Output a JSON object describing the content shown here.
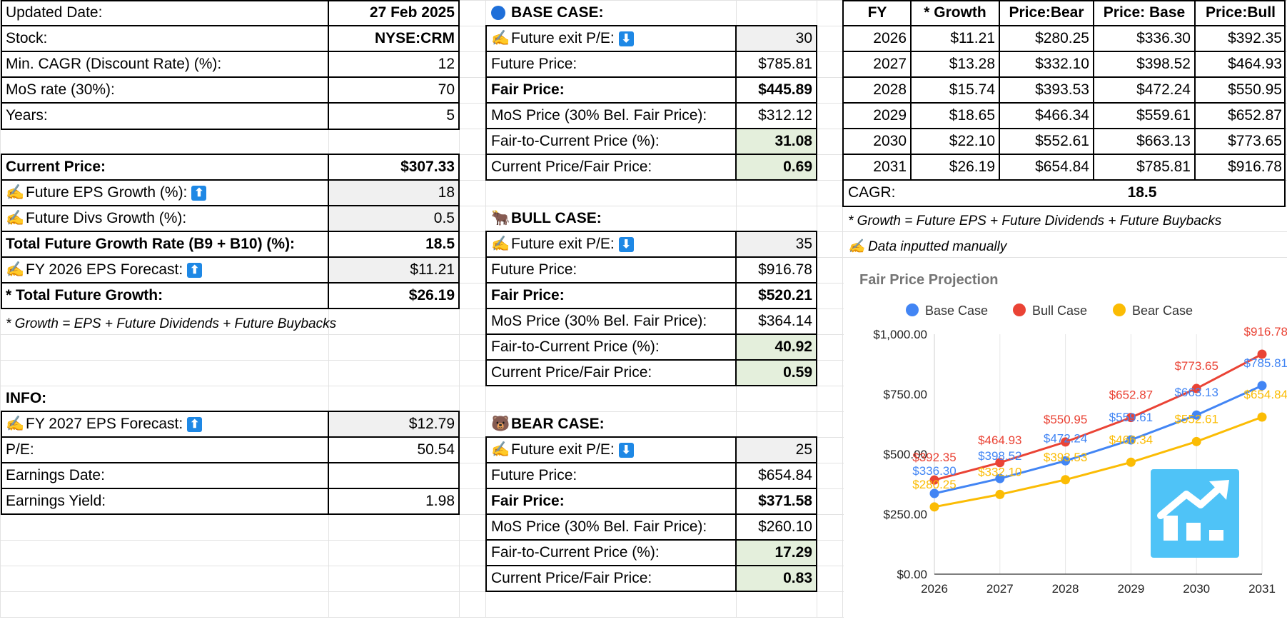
{
  "left": {
    "updated_label": "Updated Date:",
    "updated_value": "27 Feb 2025",
    "stock_label": "Stock:",
    "stock_value": "NYSE:CRM",
    "cagr_label": "Min. CAGR (Discount Rate) (%):",
    "cagr_value": "12",
    "mos_label": "MoS rate (30%):",
    "mos_value": "70",
    "years_label": "Years:",
    "years_value": "5",
    "price_label": "Current Price:",
    "price_value": "$307.33",
    "eps_growth_label": "Future EPS Growth (%):",
    "eps_growth_value": "18",
    "divs_growth_label": "Future Divs Growth (%):",
    "divs_growth_value": "0.5",
    "total_rate_label": "Total Future Growth Rate (B9 + B10) (%):",
    "total_rate_value": "18.5",
    "fy26_label": "FY 2026 EPS Forecast:",
    "fy26_value": "$11.21",
    "total_growth_label": "* Total Future Growth:",
    "total_growth_value": "$26.19",
    "note": "* Growth = EPS + Future Dividends + Future Buybacks",
    "info_label": "INFO:",
    "fy27_label": "FY 2027 EPS Forecast:",
    "fy27_value": "$12.79",
    "pe_label": "P/E:",
    "pe_value": "50.54",
    "earn_date_label": "Earnings Date:",
    "earn_date_value": "",
    "earn_yield_label": "Earnings Yield:",
    "earn_yield_value": "1.98"
  },
  "cases": [
    {
      "title": "BASE CASE:",
      "icon": "blue-circle-icon",
      "exit_label": "Future exit P/E:",
      "exit_value": "30",
      "future_label": "Future Price:",
      "future_value": "$785.81",
      "fair_label": "Fair Price:",
      "fair_value": "$445.89",
      "mos_label": "MoS Price (30% Bel. Fair Price):",
      "mos_value": "$312.12",
      "ftc_label": "Fair-to-Current Price (%):",
      "ftc_value": "31.08",
      "cpf_label": "Current Price/Fair Price:",
      "cpf_value": "0.69"
    },
    {
      "title": "BULL CASE:",
      "icon": "bull-icon",
      "exit_label": "Future exit P/E:",
      "exit_value": "35",
      "future_label": "Future Price:",
      "future_value": "$916.78",
      "fair_label": "Fair Price:",
      "fair_value": "$520.21",
      "mos_label": "MoS Price (30% Bel. Fair Price):",
      "mos_value": "$364.14",
      "ftc_label": "Fair-to-Current Price (%):",
      "ftc_value": "40.92",
      "cpf_label": "Current Price/Fair Price:",
      "cpf_value": "0.59"
    },
    {
      "title": "BEAR CASE:",
      "icon": "bear-icon",
      "exit_label": "Future exit P/E:",
      "exit_value": "25",
      "future_label": "Future Price:",
      "future_value": "$654.84",
      "fair_label": "Fair Price:",
      "fair_value": "$371.58",
      "mos_label": "MoS Price (30% Bel. Fair Price):",
      "mos_value": "$260.10",
      "ftc_label": "Fair-to-Current Price (%):",
      "ftc_value": "17.29",
      "cpf_label": "Current Price/Fair Price:",
      "cpf_value": "0.83"
    }
  ],
  "table": {
    "headers": [
      "FY",
      "* Growth",
      "Price:Bear",
      "Price: Base",
      "Price:Bull"
    ],
    "rows": [
      [
        "2026",
        "$11.21",
        "$280.25",
        "$336.30",
        "$392.35"
      ],
      [
        "2027",
        "$13.28",
        "$332.10",
        "$398.52",
        "$464.93"
      ],
      [
        "2028",
        "$15.74",
        "$393.53",
        "$472.24",
        "$550.95"
      ],
      [
        "2029",
        "$18.65",
        "$466.34",
        "$559.61",
        "$652.87"
      ],
      [
        "2030",
        "$22.10",
        "$552.61",
        "$663.13",
        "$773.65"
      ],
      [
        "2031",
        "$26.19",
        "$654.84",
        "$785.81",
        "$916.78"
      ]
    ],
    "cagr_label": "CAGR:",
    "cagr_value": "18.5",
    "note1": "* Growth = Future EPS + Future Dividends + Future Buybacks",
    "note2": "Data inputted manually"
  },
  "colors": {
    "base": "#4285f4",
    "bull": "#ea4335",
    "bear": "#fbbc04",
    "green_cell": "#e4efdc",
    "input_cell": "#f0f0f0"
  },
  "chart_data": {
    "type": "line",
    "title": "Fair Price Projection",
    "x": [
      "2026",
      "2027",
      "2028",
      "2029",
      "2030",
      "2031"
    ],
    "series": [
      {
        "name": "Base Case",
        "color": "#4285f4",
        "values": [
          336.3,
          398.52,
          472.24,
          559.61,
          663.13,
          785.81
        ],
        "labels": [
          "$336.30",
          "$398.52",
          "$472.24",
          "$559.61",
          "$663.13",
          "$785.81"
        ]
      },
      {
        "name": "Bull Case",
        "color": "#ea4335",
        "values": [
          392.35,
          464.93,
          550.95,
          652.87,
          773.65,
          916.78
        ],
        "labels": [
          "$392.35",
          "$464.93",
          "$550.95",
          "$652.87",
          "$773.65",
          "$916.78"
        ]
      },
      {
        "name": "Bear Case",
        "color": "#fbbc04",
        "values": [
          280.25,
          332.1,
          393.53,
          466.34,
          552.61,
          654.84
        ],
        "labels": [
          "$280.25",
          "$332.10",
          "$393.53",
          "$466.34",
          "$552.61",
          "$654.84"
        ]
      }
    ],
    "ylim": [
      0,
      1000
    ],
    "yticks": [
      "$0.00",
      "$250.00",
      "$500.00",
      "$750.00",
      "$1,000.00"
    ],
    "ytick_values": [
      0,
      250,
      500,
      750,
      1000
    ],
    "legend": "top",
    "grid": "vertical"
  }
}
